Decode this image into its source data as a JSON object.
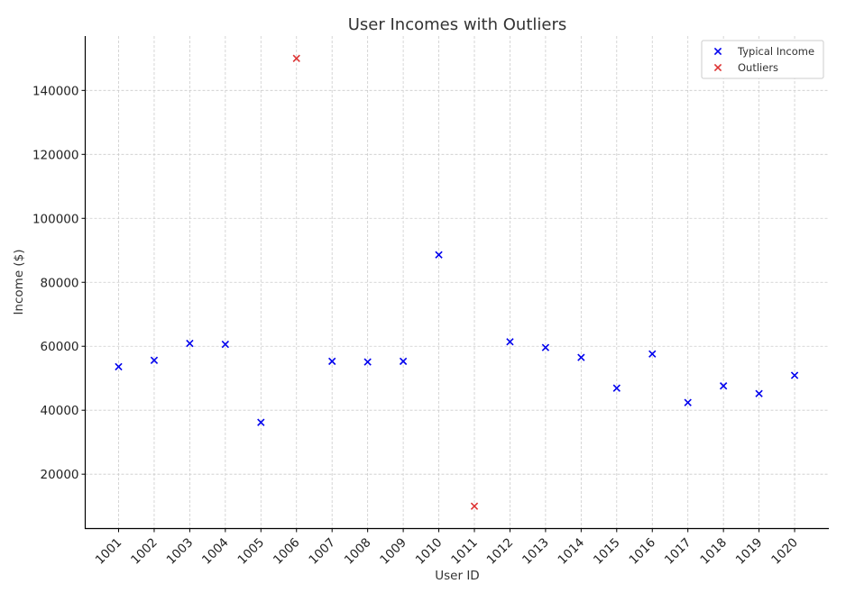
{
  "chart_data": {
    "type": "scatter",
    "title": "User Incomes with Outliers",
    "xlabel": "User ID",
    "ylabel": "Income ($)",
    "categories": [
      "1001",
      "1002",
      "1003",
      "1004",
      "1005",
      "1006",
      "1007",
      "1008",
      "1009",
      "1010",
      "1011",
      "1012",
      "1013",
      "1014",
      "1015",
      "1016",
      "1017",
      "1018",
      "1019",
      "1020"
    ],
    "ylim": [
      3000,
      157000
    ],
    "yticks": [
      20000,
      40000,
      60000,
      80000,
      100000,
      120000,
      140000
    ],
    "grid": true,
    "legend_position": "top-right",
    "marker": "x",
    "series": [
      {
        "name": "Typical Income",
        "color": "#0000ee",
        "points": [
          {
            "x": "1001",
            "y": 53600
          },
          {
            "x": "1002",
            "y": 55600
          },
          {
            "x": "1003",
            "y": 60900
          },
          {
            "x": "1004",
            "y": 60600
          },
          {
            "x": "1005",
            "y": 36200
          },
          {
            "x": "1007",
            "y": 55300
          },
          {
            "x": "1008",
            "y": 55100
          },
          {
            "x": "1009",
            "y": 55300
          },
          {
            "x": "1010",
            "y": 88600
          },
          {
            "x": "1012",
            "y": 61400
          },
          {
            "x": "1013",
            "y": 59600
          },
          {
            "x": "1014",
            "y": 56500
          },
          {
            "x": "1015",
            "y": 46900
          },
          {
            "x": "1016",
            "y": 57600
          },
          {
            "x": "1017",
            "y": 42400
          },
          {
            "x": "1018",
            "y": 47600
          },
          {
            "x": "1019",
            "y": 45200
          },
          {
            "x": "1020",
            "y": 50900
          }
        ]
      },
      {
        "name": "Outliers",
        "color": "#dd3333",
        "points": [
          {
            "x": "1006",
            "y": 150000
          },
          {
            "x": "1011",
            "y": 10000
          }
        ]
      }
    ]
  }
}
